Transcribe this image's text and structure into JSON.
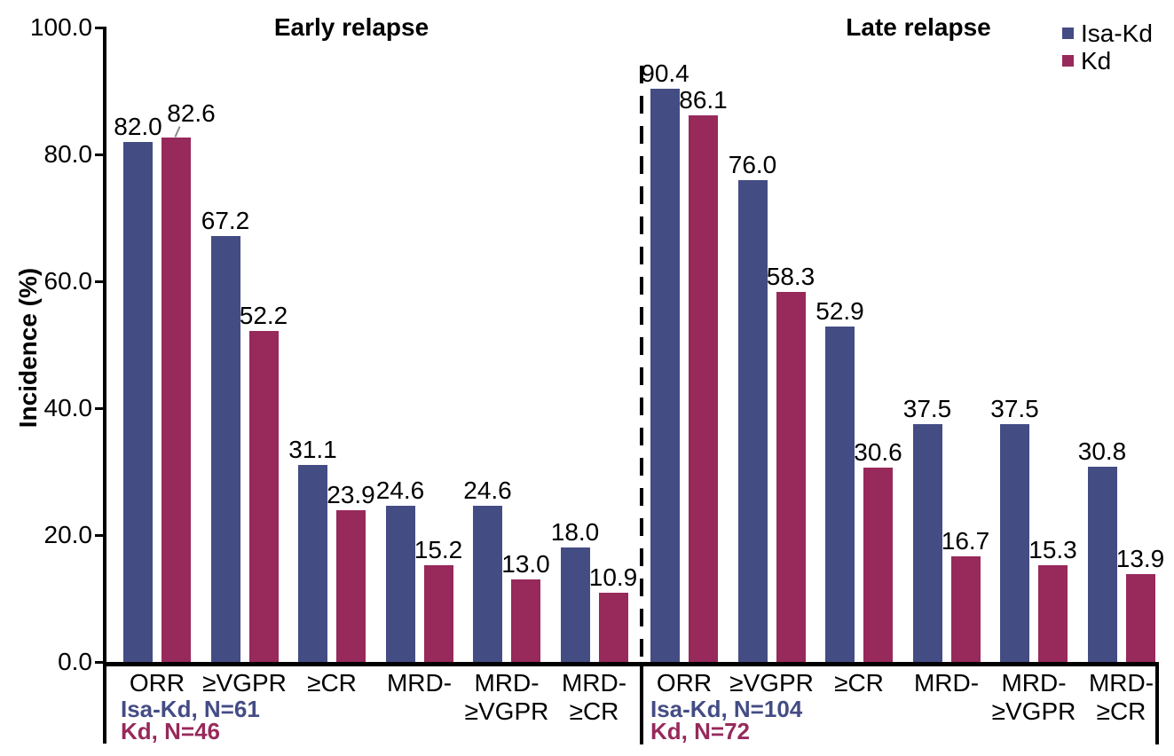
{
  "chart_data": {
    "type": "bar",
    "ylabel": "Incidence (%)",
    "ylim": [
      0,
      100
    ],
    "yticks": [
      0,
      20,
      40,
      60,
      80,
      100
    ],
    "ytick_labels": [
      "0.0",
      "20.0",
      "40.0",
      "60.0",
      "80.0",
      "100.0"
    ],
    "grid": false,
    "legend_position": "top-right",
    "series_names": [
      "Isa-Kd",
      "Kd"
    ],
    "series_colors": [
      "#444C84",
      "#97295B"
    ],
    "separator": "dashed vertical line between panels",
    "panels": [
      {
        "title": "Early relapse",
        "categories": [
          "ORR",
          "≥VGPR",
          "≥CR",
          "MRD-",
          "MRD-\n≥VGPR",
          "MRD-\n≥CR"
        ],
        "series": [
          {
            "name": "Isa-Kd",
            "values": [
              82.0,
              67.2,
              31.1,
              24.6,
              24.6,
              18.0
            ]
          },
          {
            "name": "Kd",
            "values": [
              82.6,
              52.2,
              23.9,
              15.2,
              13.0,
              10.9
            ]
          }
        ],
        "footnotes": [
          "Isa-Kd, N=61",
          "Kd, N=46"
        ]
      },
      {
        "title": "Late relapse",
        "categories": [
          "ORR",
          "≥VGPR",
          "≥CR",
          "MRD-",
          "MRD-\n≥VGPR",
          "MRD-\n≥CR"
        ],
        "series": [
          {
            "name": "Isa-Kd",
            "values": [
              90.4,
              76.0,
              52.9,
              37.5,
              37.5,
              30.8
            ]
          },
          {
            "name": "Kd",
            "values": [
              86.1,
              58.3,
              30.6,
              16.7,
              15.3,
              13.9
            ]
          }
        ],
        "footnotes": [
          "Isa-Kd, N=104",
          "Kd, N=72"
        ]
      }
    ],
    "label_overrides": [
      {
        "panel": 0,
        "series": 1,
        "index": 0,
        "dx": 17,
        "dy": -10,
        "leader": true
      }
    ]
  }
}
